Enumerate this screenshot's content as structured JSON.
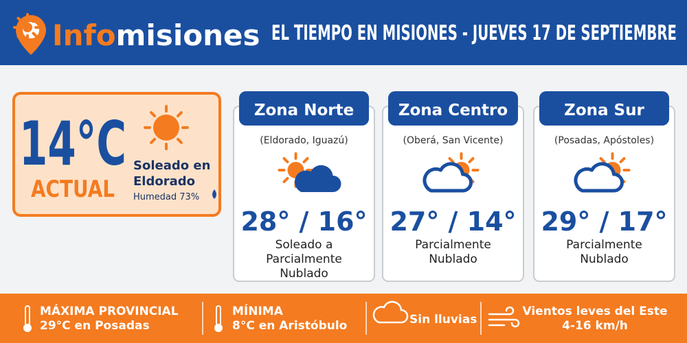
{
  "header": {
    "logo": {
      "part1": "Info",
      "part2": "misiones"
    },
    "title": "EL TIEMPO EN MISIONES - JUEVES 17 DE SEPTIEMBRE"
  },
  "current": {
    "temperature": "14°C",
    "label": "ACTUAL",
    "condition": [
      "Soleado en",
      "Eldorado"
    ],
    "humidity": "Humedad 73%"
  },
  "zones": [
    {
      "name": "Zona Norte",
      "places": "(Eldorado, Iguazú)",
      "temps": "28° / 16°",
      "description": [
        "Soleado a",
        "Parcialmente",
        "Nublado"
      ]
    },
    {
      "name": "Zona Centro",
      "places": "(Oberá, San Vicente)",
      "temps": "27° / 14°",
      "description": [
        "Parcialmente",
        "Nublado"
      ]
    },
    {
      "name": "Zona Sur",
      "places": "(Posadas, Apóstoles)",
      "temps": "29° / 17°",
      "description": [
        "Parcialmente",
        "Nublado"
      ]
    }
  ],
  "footer": [
    {
      "lines": [
        "MÁXIMA PROVINCIAL",
        "29°C en Posadas"
      ]
    },
    {
      "lines": [
        "MÍNIMA",
        "8°C en Aristóbulo"
      ]
    },
    {
      "lines": [
        "Sin lluvias"
      ]
    },
    {
      "lines": [
        "Vientos leves del Este",
        "4-16 km/h"
      ]
    }
  ]
}
